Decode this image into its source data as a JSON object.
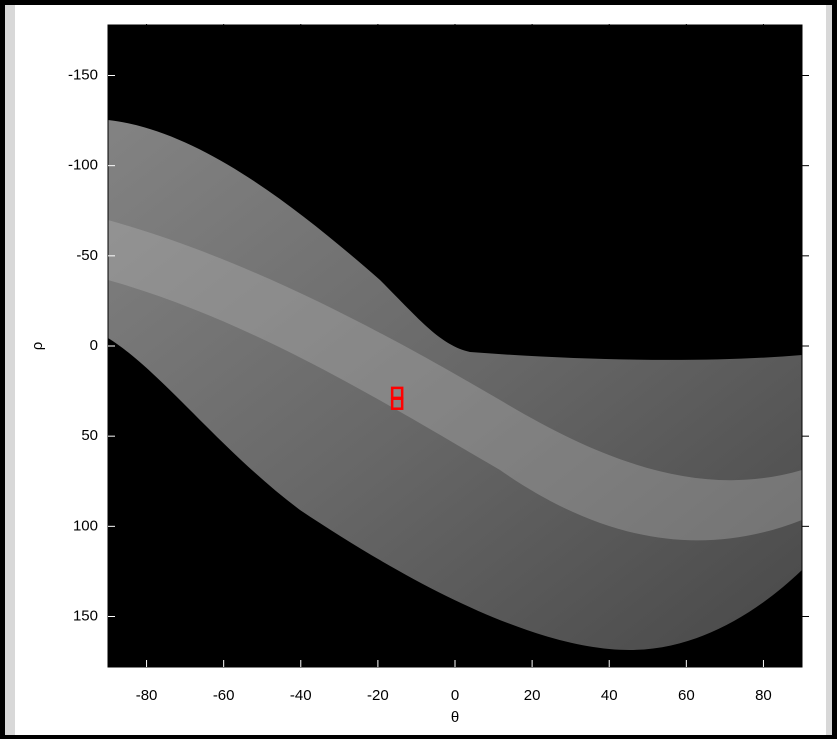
{
  "chart_data": {
    "type": "image",
    "xlabel": "θ",
    "ylabel": "ρ",
    "xlim": [
      -90,
      90
    ],
    "ylim": [
      -178,
      178
    ],
    "xticks": [
      -80,
      -60,
      -40,
      -20,
      0,
      20,
      40,
      60,
      80
    ],
    "yticks": [
      -150,
      -100,
      -50,
      0,
      50,
      100,
      150
    ],
    "y_reversed": true,
    "peaks": {
      "x": [
        -15,
        -15
      ],
      "y": [
        26,
        32
      ],
      "color": "#ff0000"
    }
  }
}
